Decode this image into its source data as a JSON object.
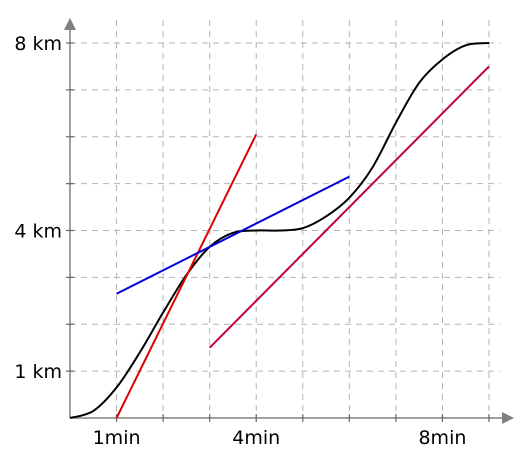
{
  "chart_data": {
    "type": "line",
    "title": "",
    "xlabel": "",
    "ylabel": "",
    "xlim": [
      0,
      9
    ],
    "ylim": [
      0,
      8
    ],
    "grid": true,
    "x_tick_labels": [
      {
        "x": 1,
        "label": "1min"
      },
      {
        "x": 4,
        "label": "4min"
      },
      {
        "x": 8,
        "label": "8min"
      }
    ],
    "y_tick_labels": [
      {
        "y": 1,
        "label": "1 km"
      },
      {
        "y": 4,
        "label": "4 km"
      },
      {
        "y": 8,
        "label": "8 km"
      }
    ],
    "series": [
      {
        "id": "distance-curve",
        "color": "#000000",
        "points": [
          [
            0,
            0
          ],
          [
            0.5,
            0.15
          ],
          [
            1,
            0.65
          ],
          [
            1.5,
            1.4
          ],
          [
            2,
            2.25
          ],
          [
            2.5,
            3.05
          ],
          [
            3,
            3.65
          ],
          [
            3.5,
            3.95
          ],
          [
            4,
            4.0
          ],
          [
            4.5,
            4.0
          ],
          [
            5,
            4.05
          ],
          [
            5.5,
            4.3
          ],
          [
            6,
            4.7
          ],
          [
            6.5,
            5.35
          ],
          [
            7,
            6.3
          ],
          [
            7.5,
            7.15
          ],
          [
            8,
            7.65
          ],
          [
            8.5,
            7.95
          ],
          [
            9,
            8.0
          ]
        ]
      },
      {
        "id": "tangent-steep",
        "color": "#e00000",
        "points": [
          [
            1,
            0
          ],
          [
            4,
            6.05
          ]
        ]
      },
      {
        "id": "tangent-shallow",
        "color": "#0000dd",
        "points": [
          [
            1,
            2.65
          ],
          [
            6,
            5.15
          ]
        ]
      },
      {
        "id": "tangent-late",
        "color": "#c0004a",
        "points": [
          [
            3,
            1.5
          ],
          [
            9,
            7.5
          ]
        ]
      }
    ]
  }
}
